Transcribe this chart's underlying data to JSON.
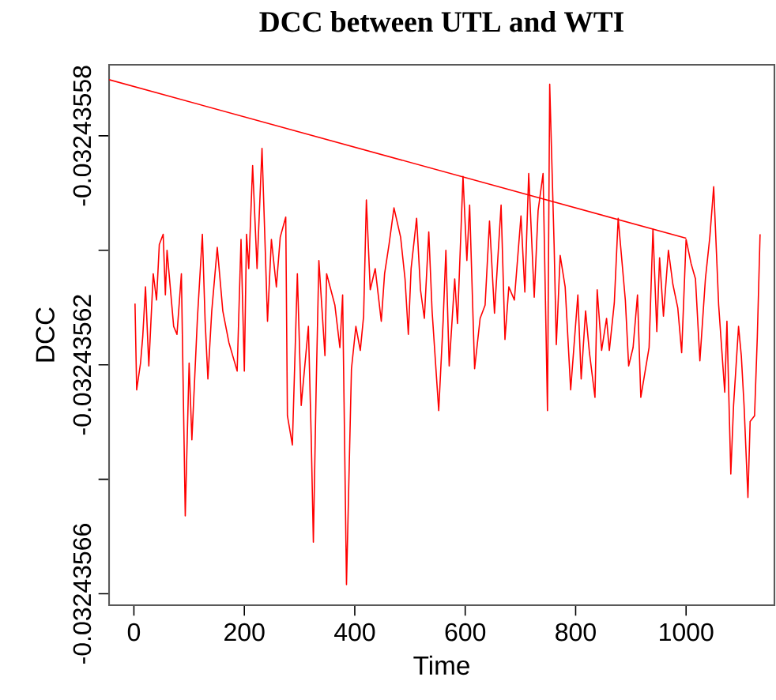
{
  "chart_data": {
    "type": "line",
    "title": "DCC between  UTL  and  WTI",
    "xlabel": "Time",
    "ylabel": "DCC",
    "xlim": [
      -45,
      1160
    ],
    "xticks": [
      0,
      200,
      400,
      600,
      800,
      1000
    ],
    "ylim": [
      -0.032435662,
      -0.0324355676
    ],
    "yticks": [
      -0.03243558,
      {
        "value": -0.0324356,
        "label": null
      },
      -0.03243562,
      {
        "value": -0.03243564,
        "label": null
      },
      -0.03243566
    ],
    "marker": "none",
    "line_style": "solid",
    "series": [
      {
        "color": "#ff0000",
        "x": [
          2,
          5,
          12,
          16,
          21,
          27,
          35,
          41,
          46,
          53,
          57,
          60,
          72,
          78,
          86,
          93,
          100,
          105,
          115,
          124,
          129,
          134,
          141,
          151,
          161,
          172,
          187,
          194,
          200,
          204,
          208,
          215,
          223,
          232,
          242,
          249,
          258,
          265,
          275,
          278,
          287,
          296,
          303,
          316,
          321,
          325,
          330,
          335,
          346,
          349,
          364,
          373,
          378,
          385,
          394,
          402,
          410,
          416,
          421,
          428,
          437,
          448,
          454,
          462,
          471,
          483,
          491,
          497,
          502,
          512,
          519,
          526,
          534,
          540,
          552,
          560,
          565,
          571,
          581,
          586,
          596,
          603,
          608,
          617,
          627,
          636,
          644,
          653,
          665,
          672,
          679,
          689,
          701,
          708,
          715,
          725,
          732,
          741,
          749,
          753,
          761,
          765,
          772,
          781,
          791,
          804,
          810,
          818,
          825,
          835,
          839,
          847,
          856,
          861,
          870,
          877,
          890,
          896,
          904,
          912,
          918,
          933,
          940,
          947,
          952,
          959,
          968,
          976,
          985,
          992,
          1000,
          1009,
          1017,
          1025,
          1035,
          1043,
          1050,
          1059,
          1070,
          1074,
          1081,
          1086,
          1095,
          1100,
          1105,
          1112,
          1116,
          1124,
          1129,
          1134
        ],
        "values": [
          -0.0324356093,
          -0.0324356244,
          -0.0324356197,
          -0.0324356151,
          -0.0324356064,
          -0.0324356202,
          -0.0324356041,
          -0.0324356087,
          -0.032435599,
          -0.0324355972,
          -0.0324356078,
          -0.0324356,
          -0.0324356133,
          -0.0324356147,
          -0.0324356041,
          -0.0324356464,
          -0.0324356197,
          -0.0324356331,
          -0.0324356119,
          -0.0324355972,
          -0.0324356124,
          -0.0324356225,
          -0.0324356106,
          -0.0324355995,
          -0.0324356106,
          -0.0324356161,
          -0.0324356211,
          -0.0324355981,
          -0.0324356211,
          -0.0324355972,
          -0.0324356032,
          -0.0324355852,
          -0.0324356032,
          -0.0324355822,
          -0.0324356124,
          -0.0324355981,
          -0.0324356064,
          -0.0324355977,
          -0.0324355942,
          -0.0324356289,
          -0.032435634,
          -0.0324356041,
          -0.0324356271,
          -0.0324356133,
          -0.0324356322,
          -0.032435651,
          -0.0324356244,
          -0.0324356018,
          -0.0324356184,
          -0.0324356041,
          -0.0324356096,
          -0.032435617,
          -0.0324356078,
          -0.0324356584,
          -0.0324356207,
          -0.0324356133,
          -0.0324356175,
          -0.0324356115,
          -0.0324355912,
          -0.0324356069,
          -0.0324356032,
          -0.0324356124,
          -0.0324356041,
          -0.032435599,
          -0.0324355926,
          -0.0324355977,
          -0.032435605,
          -0.0324356147,
          -0.0324356032,
          -0.0324355944,
          -0.0324356069,
          -0.0324356119,
          -0.0324355968,
          -0.0324356106,
          -0.032435628,
          -0.0324356124,
          -0.0324356,
          -0.0324356202,
          -0.032435605,
          -0.0324356128,
          -0.0324355871,
          -0.0324356018,
          -0.0324355921,
          -0.0324356207,
          -0.0324356119,
          -0.0324356096,
          -0.0324355949,
          -0.032435611,
          -0.0324355921,
          -0.0324356156,
          -0.0324356064,
          -0.0324356087,
          -0.032435594,
          -0.0324356073,
          -0.0324355866,
          -0.0324356082,
          -0.0324355931,
          -0.0324355866,
          -0.032435628,
          -0.032435571,
          -0.032435599,
          -0.0324356165,
          -0.0324356009,
          -0.0324356064,
          -0.0324356244,
          -0.0324356078,
          -0.0324356225,
          -0.0324356106,
          -0.0324356179,
          -0.0324356257,
          -0.0324356069,
          -0.0324356175,
          -0.0324356119,
          -0.0324356175,
          -0.0324356092,
          -0.0324355944,
          -0.0324356087,
          -0.0324356202,
          -0.032435617,
          -0.0324356078,
          -0.0324356257,
          -0.032435617,
          -0.0324355963,
          -0.0324356142,
          -0.0324356013,
          -0.0324356115,
          -0.0324356,
          -0.0324356059,
          -0.0324356101,
          -0.0324356179,
          -0.0324355981,
          -0.0324356023,
          -0.032435605,
          -0.0324356193,
          -0.032435605,
          -0.0324355977,
          -0.0324355889,
          -0.0324356096,
          -0.0324356248,
          -0.0324356124,
          -0.0324356391,
          -0.0324356271,
          -0.0324356133,
          -0.0324356184,
          -0.0324356271,
          -0.0324356432,
          -0.0324356299,
          -0.0324356289,
          -0.0324356151,
          -0.0324355972
        ]
      },
      {
        "color": "#ff0000",
        "x": [
          -45,
          1000
        ],
        "values": [
          -0.0324355702,
          -0.0324355979
        ]
      }
    ]
  }
}
